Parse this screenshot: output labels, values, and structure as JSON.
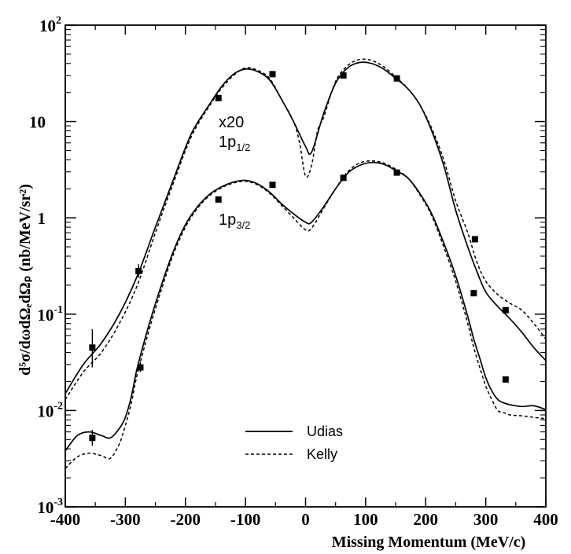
{
  "chart_data": {
    "type": "line",
    "xlabel": "Missing Momentum (MeV/c)",
    "ylabel": "d⁵σ/dωdΩₑdΩₚ (nb/MeV/sr²)",
    "xlim": [
      -400,
      400
    ],
    "ylim": [
      0.001,
      100
    ],
    "yscale": "log",
    "x_ticks": [
      -400,
      -300,
      -200,
      -100,
      0,
      100,
      200,
      300,
      400
    ],
    "y_ticks": [
      {
        "value": 100,
        "base": "10",
        "exp": "2"
      },
      {
        "value": 10,
        "base": "10",
        "exp": ""
      },
      {
        "value": 1,
        "base": "1",
        "exp": ""
      },
      {
        "value": 0.1,
        "base": "10",
        "exp": "-1"
      },
      {
        "value": 0.01,
        "base": "10",
        "exp": "-2"
      },
      {
        "value": 0.001,
        "base": "10",
        "exp": "-3"
      }
    ],
    "annotations": {
      "scale_factor": "x20",
      "upper_state": {
        "main": "1p",
        "sub": "1/2"
      },
      "lower_state": {
        "main": "1p",
        "sub": "3/2"
      }
    },
    "legend": {
      "position": "bottom-center",
      "entries": [
        {
          "name": "Udias",
          "style": "solid"
        },
        {
          "name": "Kelly",
          "style": "dashed"
        }
      ]
    },
    "series": [
      {
        "name": "1p1/2 x20 Udias",
        "group": "1p1/2",
        "style": "solid",
        "x": [
          -400,
          -370,
          -340,
          -310,
          -280,
          -250,
          -220,
          -190,
          -160,
          -140,
          -120,
          -100,
          -80,
          -60,
          -40,
          -20,
          0,
          10,
          30,
          50,
          70,
          90,
          110,
          130,
          150,
          170,
          190,
          210,
          230,
          250,
          270,
          285,
          300,
          320,
          340,
          360,
          380,
          400
        ],
        "y": [
          0.015,
          0.03,
          0.05,
          0.1,
          0.25,
          0.8,
          2.5,
          7.5,
          15,
          23,
          31,
          35,
          33,
          27,
          17,
          10,
          5.5,
          4.8,
          12,
          25,
          36,
          41,
          40,
          35,
          28,
          22,
          15,
          8,
          3.5,
          1.2,
          0.5,
          0.28,
          0.17,
          0.12,
          0.09,
          0.065,
          0.045,
          0.033
        ]
      },
      {
        "name": "1p1/2 x20 Kelly",
        "group": "1p1/2",
        "style": "dashed",
        "x": [
          -400,
          -370,
          -340,
          -310,
          -280,
          -250,
          -220,
          -190,
          -160,
          -140,
          -120,
          -100,
          -80,
          -60,
          -40,
          -20,
          -10,
          0,
          10,
          20,
          30,
          50,
          70,
          90,
          110,
          130,
          150,
          170,
          190,
          210,
          230,
          250,
          270,
          285,
          300,
          320,
          340,
          360,
          380,
          400
        ],
        "y": [
          0.013,
          0.025,
          0.04,
          0.08,
          0.2,
          0.7,
          2.3,
          7,
          14.5,
          22,
          30,
          36,
          34,
          28,
          17,
          10,
          6,
          2.7,
          3.5,
          8,
          11,
          26,
          38,
          44,
          43,
          37,
          29,
          22,
          15,
          8.5,
          4,
          1.5,
          0.7,
          0.35,
          0.22,
          0.16,
          0.13,
          0.11,
          0.08,
          0.055
        ]
      },
      {
        "name": "1p3/2 Udias",
        "group": "1p3/2",
        "style": "solid",
        "x": [
          -400,
          -380,
          -360,
          -340,
          -325,
          -310,
          -300,
          -290,
          -280,
          -260,
          -240,
          -220,
          -200,
          -180,
          -160,
          -140,
          -120,
          -100,
          -80,
          -60,
          -40,
          -20,
          0,
          10,
          30,
          50,
          70,
          90,
          110,
          130,
          150,
          170,
          190,
          210,
          230,
          250,
          270,
          280,
          290,
          300,
          310,
          320,
          330,
          340,
          360,
          380,
          400
        ],
        "y": [
          0.0038,
          0.0055,
          0.006,
          0.0055,
          0.0052,
          0.0065,
          0.0085,
          0.014,
          0.028,
          0.08,
          0.2,
          0.45,
          0.85,
          1.3,
          1.75,
          2.1,
          2.35,
          2.45,
          2.25,
          1.85,
          1.4,
          1.1,
          0.9,
          0.9,
          1.3,
          2.0,
          2.9,
          3.5,
          3.75,
          3.6,
          3.1,
          2.6,
          1.8,
          1.1,
          0.55,
          0.25,
          0.095,
          0.055,
          0.035,
          0.022,
          0.016,
          0.013,
          0.012,
          0.0115,
          0.011,
          0.0112,
          0.0102
        ]
      },
      {
        "name": "1p3/2 Kelly",
        "group": "1p3/2",
        "style": "dashed",
        "x": [
          -400,
          -380,
          -360,
          -340,
          -325,
          -310,
          -300,
          -290,
          -280,
          -260,
          -240,
          -220,
          -200,
          -180,
          -160,
          -140,
          -120,
          -100,
          -80,
          -60,
          -40,
          -20,
          0,
          10,
          30,
          50,
          70,
          90,
          110,
          130,
          150,
          170,
          190,
          210,
          230,
          250,
          270,
          280,
          290,
          300,
          310,
          320,
          330,
          340,
          360,
          380,
          400
        ],
        "y": [
          0.0025,
          0.0033,
          0.0036,
          0.0034,
          0.0032,
          0.0045,
          0.007,
          0.012,
          0.024,
          0.07,
          0.18,
          0.42,
          0.8,
          1.25,
          1.7,
          2.05,
          2.3,
          2.4,
          2.2,
          1.8,
          1.35,
          1.0,
          0.75,
          0.78,
          1.25,
          2.0,
          3.0,
          3.7,
          3.9,
          3.7,
          3.2,
          2.6,
          1.75,
          1.05,
          0.5,
          0.22,
          0.08,
          0.045,
          0.028,
          0.018,
          0.013,
          0.01,
          0.0095,
          0.009,
          0.0088,
          0.0085,
          0.0082
        ]
      },
      {
        "name": "1p1/2 x20 data",
        "group": "1p1/2",
        "style": "markers",
        "x": [
          -355,
          -278,
          -145,
          -55,
          63,
          152,
          282,
          333
        ],
        "y": [
          0.045,
          0.28,
          17.5,
          31,
          30,
          28,
          0.6,
          0.11
        ],
        "err_low": [
          0.028,
          0.24,
          17,
          30,
          29,
          27,
          0.57,
          0.105
        ],
        "err_high": [
          0.07,
          0.33,
          18,
          32,
          31,
          29,
          0.63,
          0.115
        ]
      },
      {
        "name": "1p3/2 data",
        "group": "1p3/2",
        "style": "markers",
        "x": [
          -355,
          -275,
          -145,
          -55,
          63,
          152,
          280,
          333
        ],
        "y": [
          0.0052,
          0.028,
          1.55,
          2.2,
          2.6,
          2.95,
          0.165,
          0.021
        ],
        "err_low": [
          0.0043,
          0.025,
          1.5,
          2.13,
          2.52,
          2.88,
          0.158,
          0.02
        ],
        "err_high": [
          0.0063,
          0.032,
          1.6,
          2.27,
          2.68,
          3.02,
          0.172,
          0.022
        ]
      }
    ]
  }
}
